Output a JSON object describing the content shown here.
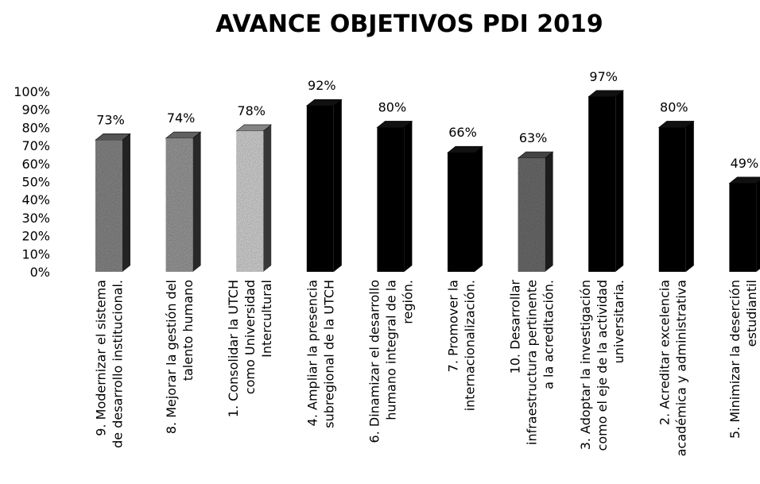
{
  "chart_data": {
    "type": "bar",
    "title": "AVANCE OBJETIVOS PDI 2019",
    "categories": [
      "9. Modernizar el sistema\nde desarrollo institucional.",
      "8. Mejorar la gestión del\ntalento humano",
      "1. Consolidar la UTCH\ncomo Universidad\nIntercultural",
      "4. Ampliar la presencia\nsubregional de la UTCH",
      "6. Dinamizar el desarrollo\nhumano integral de la\nregión.",
      "7. Promover la\ninternacionalización.",
      "10. Desarrollar\ninfraestructura pertinente\na la acreditación.",
      "3. Adoptar la investigación\ncomo el eje de la actividad\nuniversitaria.",
      "2. Acreditar excelencia\nacadémica y administrativa",
      "5. Minimizar la deserción\nestudiantil"
    ],
    "values": [
      73,
      74,
      78,
      92,
      80,
      66,
      63,
      97,
      80,
      49
    ],
    "value_labels": [
      "73%",
      "74%",
      "78%",
      "92%",
      "80%",
      "66%",
      "63%",
      "97%",
      "80%",
      "49%"
    ],
    "colors": [
      "#8c8c8c",
      "#a0a0a0",
      "#dcdcdc",
      "#000000",
      "#000000",
      "#000000",
      "#707070",
      "#000000",
      "#000000",
      "#000000"
    ],
    "ylim": [
      0,
      100
    ],
    "yticks": [
      {
        "value": 0,
        "label": "0%"
      },
      {
        "value": 10,
        "label": "10%"
      },
      {
        "value": 20,
        "label": "20%"
      },
      {
        "value": 30,
        "label": "30%"
      },
      {
        "value": 40,
        "label": "40%"
      },
      {
        "value": 50,
        "label": "50%"
      },
      {
        "value": 60,
        "label": "60%"
      },
      {
        "value": 70,
        "label": "70%"
      },
      {
        "value": 80,
        "label": "80%"
      },
      {
        "value": 90,
        "label": "90%"
      },
      {
        "value": 100,
        "label": "100%"
      }
    ],
    "grid": false
  }
}
